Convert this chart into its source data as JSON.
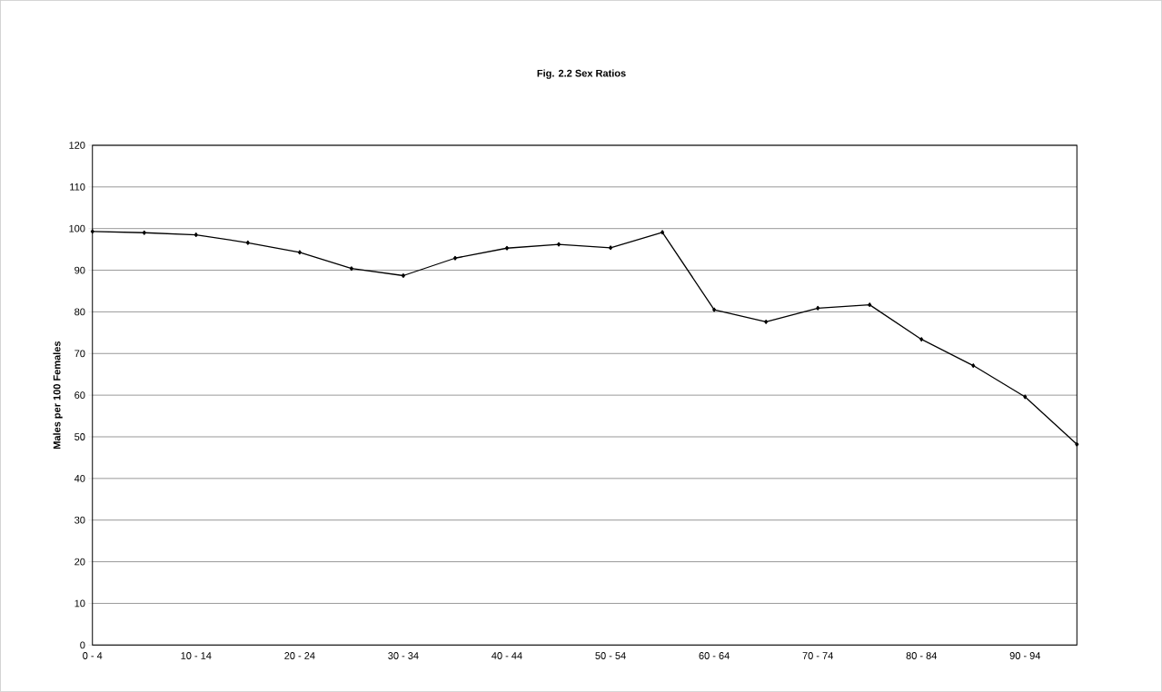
{
  "chart_data": {
    "type": "line",
    "title": "Fig. 2.2 Sex Ratios",
    "ylabel": "Males per 100 Females",
    "categories": [
      "0 - 4",
      null,
      "10 - 14",
      null,
      "20 - 24",
      null,
      "30 - 34",
      null,
      "40 - 44",
      null,
      "50 - 54",
      null,
      "60 - 64",
      null,
      "70 - 74",
      null,
      "80 - 84",
      null,
      "90 - 94",
      null
    ],
    "series": [
      {
        "color": "#000000",
        "values": [
          99.3,
          99.0,
          98.5,
          96.6,
          94.3,
          90.4,
          88.7,
          92.9,
          95.3,
          96.2,
          95.4,
          99.1,
          80.5,
          77.6,
          80.9,
          81.7,
          73.4,
          67.1,
          59.6,
          48.2
        ]
      }
    ],
    "ylim": [
      0,
      120
    ],
    "yticks": [
      0,
      10,
      20,
      30,
      40,
      50,
      60,
      70,
      80,
      90,
      100,
      110,
      120
    ],
    "grid": "y",
    "marker": "diamond",
    "line_style": "solid"
  }
}
